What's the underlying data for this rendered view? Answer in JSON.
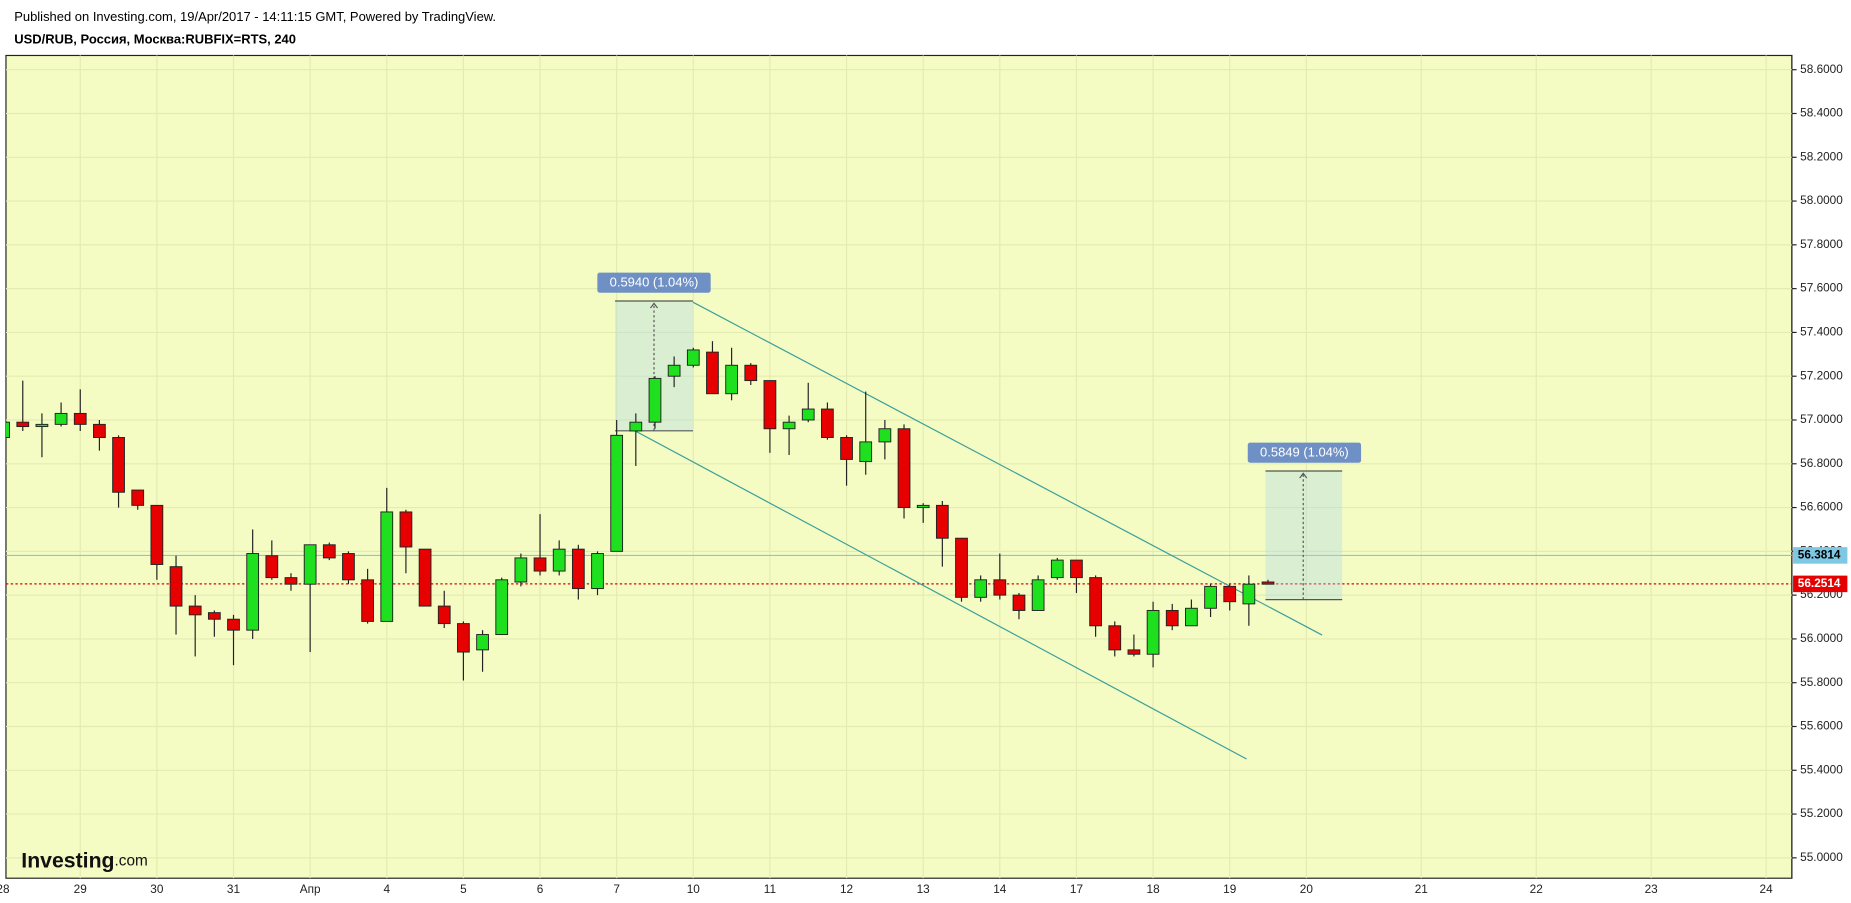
{
  "chart_data": {
    "type": "candlestick",
    "published": "Published on Investing.com, 19/Apr/2017 - 14:11:15 GMT, Powered by TradingView.",
    "title": "USD/RUB, Россия, Москва:RUBFIX=RTS, 240",
    "logo": {
      "name": "Investing",
      "suffix": ".com"
    },
    "categories": [
      "28",
      null,
      null,
      null,
      "29",
      null,
      null,
      null,
      "30",
      null,
      null,
      null,
      "31",
      null,
      null,
      null,
      "Апр",
      null,
      null,
      null,
      "4",
      null,
      null,
      null,
      "5",
      null,
      null,
      null,
      "6",
      null,
      null,
      null,
      "7",
      null,
      null,
      null,
      "10",
      null,
      null,
      null,
      "11",
      null,
      null,
      null,
      "12",
      null,
      null,
      null,
      "13",
      null,
      null,
      null,
      "14",
      null,
      null,
      null,
      "17",
      null,
      null,
      null,
      "18",
      null,
      null,
      null,
      "19",
      null,
      null,
      null,
      "20",
      null,
      null,
      null,
      null,
      null,
      "21",
      null,
      null,
      null,
      null,
      null,
      "22",
      null,
      null,
      null,
      null,
      null,
      "23",
      null,
      null,
      null,
      null,
      null,
      "24"
    ],
    "open": [
      56.92,
      56.99,
      56.97,
      56.98,
      57.03,
      56.98,
      56.92,
      56.68,
      56.61,
      56.33,
      56.15,
      56.12,
      56.09,
      56.04,
      56.38,
      56.28,
      56.25,
      56.43,
      56.39,
      56.27,
      56.08,
      56.58,
      56.41,
      56.15,
      56.07,
      55.95,
      56.02,
      56.26,
      56.37,
      56.31,
      56.41,
      56.23,
      56.4,
      56.95,
      56.99,
      57.2,
      57.25,
      57.31,
      57.12,
      57.25,
      57.18,
      56.96,
      57.0,
      57.05,
      56.92,
      56.81,
      56.9,
      56.96,
      56.6,
      56.61,
      56.46,
      56.19,
      56.27,
      56.2,
      56.13,
      56.28,
      56.36,
      56.28,
      56.06,
      55.95,
      55.93,
      56.13,
      56.06,
      56.14,
      56.24,
      56.16,
      56.26,
      null,
      null,
      null,
      null,
      null,
      null,
      null,
      null,
      null,
      null,
      null,
      null,
      null,
      null,
      null,
      null,
      null,
      null,
      null,
      null,
      null,
      null,
      null,
      null,
      null,
      null
    ],
    "high": [
      57.0,
      57.18,
      57.03,
      57.08,
      57.14,
      57.0,
      56.93,
      56.68,
      56.61,
      56.38,
      56.2,
      56.13,
      56.11,
      56.5,
      56.45,
      56.3,
      56.43,
      56.44,
      56.4,
      56.32,
      56.69,
      56.59,
      56.41,
      56.22,
      56.08,
      56.04,
      56.28,
      56.39,
      56.57,
      56.45,
      56.43,
      56.4,
      57.0,
      57.03,
      57.2,
      57.29,
      57.33,
      57.36,
      57.33,
      57.26,
      57.18,
      57.02,
      57.17,
      57.08,
      56.93,
      57.13,
      57.0,
      56.98,
      56.62,
      56.63,
      56.46,
      56.29,
      56.39,
      56.21,
      56.29,
      56.37,
      56.36,
      56.29,
      56.08,
      56.02,
      56.17,
      56.16,
      56.18,
      56.25,
      56.25,
      56.29,
      56.27,
      null,
      null,
      null,
      null,
      null,
      null,
      null,
      null,
      null,
      null,
      null,
      null,
      null,
      null,
      null,
      null,
      null,
      null,
      null,
      null,
      null,
      null,
      null,
      null,
      null,
      null
    ],
    "low": [
      56.9,
      56.95,
      56.83,
      56.97,
      56.95,
      56.86,
      56.6,
      56.59,
      56.27,
      56.02,
      55.92,
      56.01,
      55.88,
      56.0,
      56.27,
      56.22,
      55.94,
      56.36,
      56.25,
      56.07,
      56.08,
      56.3,
      56.15,
      56.05,
      55.81,
      55.85,
      56.02,
      56.24,
      56.29,
      56.29,
      56.18,
      56.2,
      56.4,
      56.79,
      56.96,
      57.15,
      57.24,
      57.12,
      57.09,
      57.16,
      56.85,
      56.84,
      56.99,
      56.91,
      56.7,
      56.75,
      56.82,
      56.55,
      56.53,
      56.33,
      56.17,
      56.17,
      56.18,
      56.09,
      56.13,
      56.27,
      56.21,
      56.01,
      55.92,
      55.92,
      55.87,
      56.04,
      56.06,
      56.1,
      56.13,
      56.06,
      56.25,
      null,
      null,
      null,
      null,
      null,
      null,
      null,
      null,
      null,
      null,
      null,
      null,
      null,
      null,
      null,
      null,
      null,
      null,
      null,
      null,
      null,
      null,
      null,
      null,
      null,
      null
    ],
    "close": [
      56.99,
      56.97,
      56.98,
      57.03,
      56.98,
      56.92,
      56.67,
      56.61,
      56.34,
      56.15,
      56.11,
      56.09,
      56.04,
      56.39,
      56.28,
      56.25,
      56.43,
      56.37,
      56.27,
      56.08,
      56.58,
      56.42,
      56.15,
      56.07,
      55.94,
      56.02,
      56.27,
      56.37,
      56.31,
      56.41,
      56.23,
      56.39,
      56.93,
      56.99,
      57.19,
      57.25,
      57.32,
      57.12,
      57.25,
      57.18,
      56.96,
      56.99,
      57.05,
      56.92,
      56.82,
      56.9,
      56.96,
      56.6,
      56.61,
      56.46,
      56.19,
      56.27,
      56.2,
      56.13,
      56.27,
      56.36,
      56.28,
      56.06,
      55.95,
      55.93,
      56.13,
      56.06,
      56.14,
      56.24,
      56.17,
      56.25,
      56.25,
      null,
      null,
      null,
      null,
      null,
      null,
      null,
      null,
      null,
      null,
      null,
      null,
      null,
      null,
      null,
      null,
      null,
      null,
      null,
      null,
      null,
      null,
      null,
      null,
      null,
      null
    ],
    "up_color": "#1ee01e",
    "down_color": "#e60000",
    "ylim": [
      54.907,
      58.665
    ],
    "yticks": [
      {
        "value": 55.0,
        "label": "55.0000"
      },
      {
        "value": 55.2,
        "label": "55.2000"
      },
      {
        "value": 55.4,
        "label": "55.4000"
      },
      {
        "value": 55.6,
        "label": "55.6000"
      },
      {
        "value": 55.8,
        "label": "55.8000"
      },
      {
        "value": 56.0,
        "label": "56.0000"
      },
      {
        "value": 56.2,
        "label": "56.2000"
      },
      {
        "value": 56.4,
        "label": "56.4000"
      },
      {
        "value": 56.6,
        "label": "56.6000"
      },
      {
        "value": 56.8,
        "label": "56.8000"
      },
      {
        "value": 57.0,
        "label": "57.0000"
      },
      {
        "value": 57.2,
        "label": "57.2000"
      },
      {
        "value": 57.4,
        "label": "57.4000"
      },
      {
        "value": 57.6,
        "label": "57.6000"
      },
      {
        "value": 57.8,
        "label": "57.8000"
      },
      {
        "value": 58.0,
        "label": "58.0000"
      },
      {
        "value": 58.2,
        "label": "58.2000"
      },
      {
        "value": 58.4,
        "label": "58.4000"
      },
      {
        "value": 58.6,
        "label": "58.6000"
      }
    ],
    "grid": true,
    "price_lines": [
      {
        "value": 56.3814,
        "color": "#7ec8e3"
      },
      {
        "value": 56.2514,
        "color": "#e60000"
      }
    ],
    "measures": [
      {
        "label": "0.5940 (1.04%)"
      },
      {
        "label": "0.5849 (1.04%)"
      }
    ]
  }
}
